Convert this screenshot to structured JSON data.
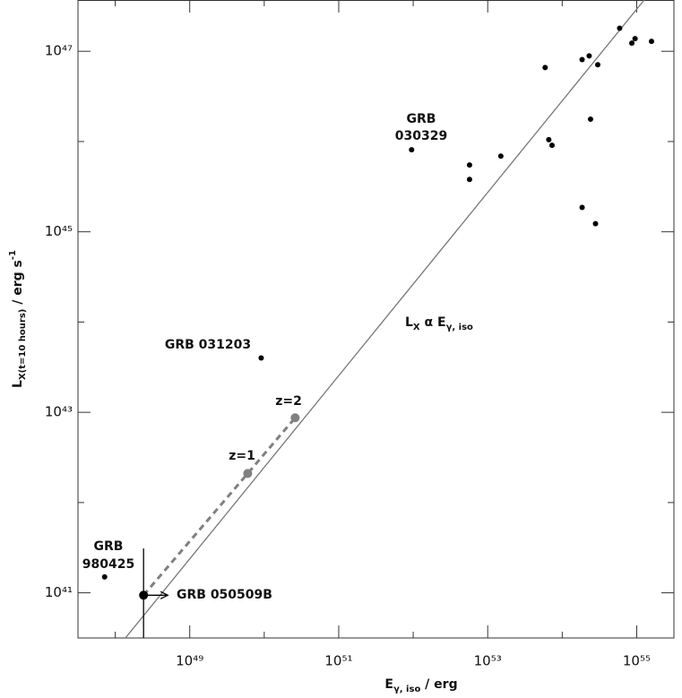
{
  "chart_data": {
    "type": "scatter",
    "xlog": true,
    "ylog": true,
    "xlim": [
      3.16e+47,
      3.16e+55
    ],
    "ylim": [
      3.16e+40,
      3.7e+47
    ],
    "xticks": [
      {
        "value": 1e+49,
        "label": "10⁴⁹"
      },
      {
        "value": 1e+51,
        "label": "10⁵¹"
      },
      {
        "value": 1e+53,
        "label": "10⁵³"
      },
      {
        "value": 1e+55,
        "label": "10⁵⁵"
      }
    ],
    "xminorticks": [
      1e+48,
      1e+50,
      1e+52,
      1e+54
    ],
    "yticks": [
      {
        "value": 1e+41,
        "label": "10⁴¹"
      },
      {
        "value": 1e+43,
        "label": "10⁴³"
      },
      {
        "value": 1e+45,
        "label": "10⁴⁵"
      },
      {
        "value": 1e+47,
        "label": "10⁴⁷"
      }
    ],
    "yminorticks": [
      1e+42,
      1e+44,
      1e+46
    ],
    "xlabel": [
      "E",
      "γ, iso",
      " / erg"
    ],
    "ylabel": [
      "L",
      "X(t=10 hours)",
      " / erg s",
      "-1"
    ],
    "series": [
      {
        "color": "#000000",
        "x": [
          7.2e+47,
          9.1e+49,
          9.5e+51,
          5.7e+52,
          5.7e+52,
          1.5e+53,
          5.9e+53,
          6.6e+53,
          7.3e+53,
          1.85e+54,
          2.3e+54,
          3e+54,
          2.4e+54,
          1.85e+54,
          2.8e+54,
          5.9e+54,
          8.6e+54,
          9.5e+54,
          1.58e+55
        ],
        "y": [
          1.5e+41,
          4e+43,
          8.1e+45,
          5.5e+45,
          3.8e+45,
          6.9e+45,
          6.6e+46,
          1.05e+46,
          9.1e+45,
          8.1e+46,
          8.9e+46,
          7.1e+46,
          1.77e+46,
          1.86e+45,
          1.23e+45,
          1.8e+47,
          1.23e+47,
          1.38e+47,
          1.29e+47
        ]
      },
      {
        "color": "#000000",
        "x": [
          2.4e+48
        ],
        "y": [
          9.4e+40
        ],
        "y_upper": [
          3.1e+41
        ],
        "x_lower_limit": true
      },
      {
        "color": "#808080",
        "x": [
          6e+49,
          2.6e+50
        ],
        "y": [
          2.1e+42,
          8.7e+42
        ]
      }
    ],
    "fit": {
      "x": [
        1.37e+48,
        1.26e+55
      ],
      "y": [
        3.16e+40,
        3.7e+47
      ],
      "color": "#777777",
      "label": [
        "L",
        "X",
        " α E",
        "γ, iso"
      ]
    },
    "annotations": [
      "GRB",
      "030329",
      "GRB 031203",
      "GRB",
      "980425",
      "GRB 050509B",
      "z=1",
      "z=2"
    ]
  }
}
